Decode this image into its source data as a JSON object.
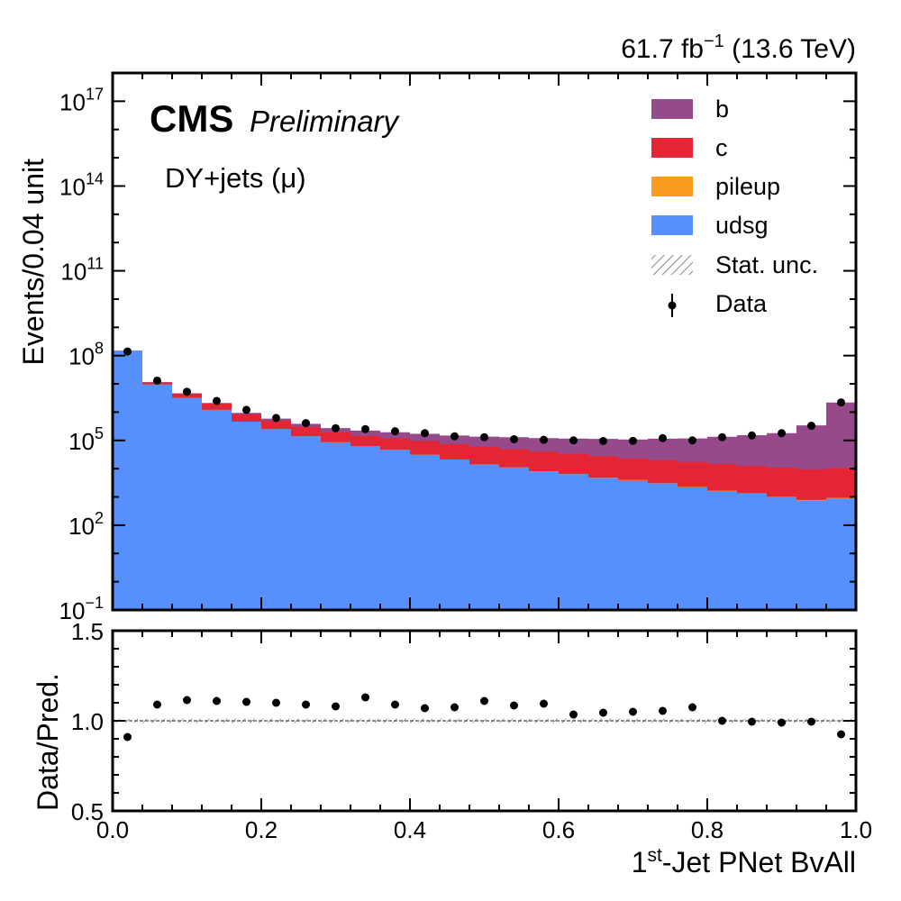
{
  "header": {
    "lumi_value": "61.7 fb",
    "lumi_exponent": "−1",
    "energy": " (13.6 TeV)",
    "cms": "CMS",
    "preliminary": "Preliminary",
    "channel": "DY+jets (μ)"
  },
  "colors": {
    "b": "#964a8b",
    "c": "#e42536",
    "pileup": "#f89c20",
    "udsg": "#5790fc",
    "data": "#000000"
  },
  "chart_data": [
    {
      "type": "area",
      "ylabel": "Events/0.04 unit",
      "yscale": "log",
      "xlim": [
        0.0,
        1.0
      ],
      "ylim": [
        0.1,
        1e+18
      ],
      "y_ticks": [
        {
          "base": "10",
          "exp": "17",
          "value": 1e+17
        },
        {
          "base": "10",
          "exp": "14",
          "value": 100000000000000.0
        },
        {
          "base": "10",
          "exp": "11",
          "value": 100000000000.0
        },
        {
          "base": "10",
          "exp": "8",
          "value": 100000000.0
        },
        {
          "base": "10",
          "exp": "5",
          "value": 100000.0
        },
        {
          "base": "10",
          "exp": "2",
          "value": 100.0
        },
        {
          "base": "10",
          "exp": "−1",
          "value": 0.1
        }
      ],
      "bin_edges": [
        0.0,
        0.04,
        0.08,
        0.12,
        0.16,
        0.2,
        0.24,
        0.28,
        0.32,
        0.36,
        0.4,
        0.44,
        0.48,
        0.52,
        0.56,
        0.6,
        0.64,
        0.68,
        0.72,
        0.76,
        0.8,
        0.84,
        0.88,
        0.92,
        0.96,
        1.0
      ],
      "series": [
        {
          "name": "udsg",
          "color_key": "udsg",
          "values": [
            150000000.0,
            9500000.0,
            3200000.0,
            1200000.0,
            460000.0,
            250000.0,
            140000.0,
            86000.0,
            62000.0,
            46000.0,
            31000.0,
            21000.0,
            14000.0,
            11000.0,
            8000.0,
            6400.0,
            4700.0,
            3900.0,
            3000.0,
            2200.0,
            1600.0,
            1300.0,
            960.0,
            740.0,
            880.0
          ]
        },
        {
          "name": "pileup",
          "color_key": "pileup",
          "values": [
            200000.0,
            20000.0,
            8000.0,
            3000.0,
            1500.0,
            900.0,
            600.0,
            450.0,
            350.0,
            280.0,
            220.0,
            180.0,
            160.0,
            140.0,
            120.0,
            110.0,
            100.0,
            90.0,
            80.0,
            70.0,
            60.0,
            50.0,
            45.0,
            40.0,
            40.0
          ]
        },
        {
          "name": "c",
          "color_key": "c",
          "values": [
            1000000.0,
            1800000.0,
            1300000.0,
            800000.0,
            380000.0,
            250000.0,
            160000.0,
            105000.0,
            82000.0,
            72000.0,
            64000.0,
            52000.0,
            45000.0,
            38000.0,
            32000.0,
            27000.0,
            23000.0,
            19000.0,
            17000.0,
            15000.0,
            13000.0,
            11000.0,
            9800.0,
            8700.0,
            9600.0
          ]
        },
        {
          "name": "b",
          "color_key": "b",
          "values": [
            200000.0,
            150000.0,
            130000.0,
            110000.0,
            100000.0,
            90000.0,
            85000.0,
            80000.0,
            78000.0,
            76000.0,
            76000.0,
            76000.0,
            76000.0,
            80000.0,
            80000.0,
            83000.0,
            85000.0,
            85000.0,
            95000.0,
            100000.0,
            120000.0,
            140000.0,
            170000.0,
            330000.0,
            2180000.0
          ]
        }
      ],
      "data": {
        "name": "Data",
        "x": [
          0.02,
          0.06,
          0.1,
          0.14,
          0.18,
          0.22,
          0.26,
          0.3,
          0.34,
          0.38,
          0.42,
          0.46,
          0.5,
          0.54,
          0.58,
          0.62,
          0.66,
          0.7,
          0.74,
          0.78,
          0.82,
          0.86,
          0.9,
          0.94,
          0.98
        ],
        "y": [
          140000000.0,
          13000000.0,
          5300000.0,
          2500000.0,
          1200000.0,
          620000.0,
          410000.0,
          270000.0,
          250000.0,
          210000.0,
          180000.0,
          140000.0,
          130000.0,
          110000.0,
          105000.0,
          100000.0,
          95000.0,
          96000.0,
          120000.0,
          100000.0,
          130000.0,
          150000.0,
          180000.0,
          330000.0,
          2200000.0
        ]
      },
      "legend": [
        "b",
        "c",
        "pileup",
        "udsg",
        "Stat. unc.",
        "Data"
      ],
      "legend_position": "top-right"
    },
    {
      "type": "scatter",
      "xlabel_sup": "st",
      "xlabel_pre": "1",
      "xlabel_post": "-Jet PNet BvAll",
      "ylabel": "Data/Pred.",
      "xlim": [
        0.0,
        1.0
      ],
      "ylim": [
        0.5,
        1.5
      ],
      "x_ticks": [
        "0.0",
        "0.2",
        "0.4",
        "0.6",
        "0.8",
        "1.0"
      ],
      "y_ticks": [
        "0.5",
        "1.0",
        "1.5"
      ],
      "reference_line": 1.0,
      "x": [
        0.02,
        0.06,
        0.1,
        0.14,
        0.18,
        0.22,
        0.26,
        0.3,
        0.34,
        0.38,
        0.42,
        0.46,
        0.5,
        0.54,
        0.58,
        0.62,
        0.66,
        0.7,
        0.74,
        0.78,
        0.82,
        0.86,
        0.9,
        0.94,
        0.98
      ],
      "y": [
        0.91,
        1.09,
        1.115,
        1.11,
        1.105,
        1.1,
        1.09,
        1.08,
        1.13,
        1.09,
        1.07,
        1.075,
        1.11,
        1.085,
        1.095,
        1.035,
        1.045,
        1.05,
        1.055,
        1.075,
        1.0,
        0.995,
        0.99,
        0.995,
        0.925
      ]
    }
  ]
}
